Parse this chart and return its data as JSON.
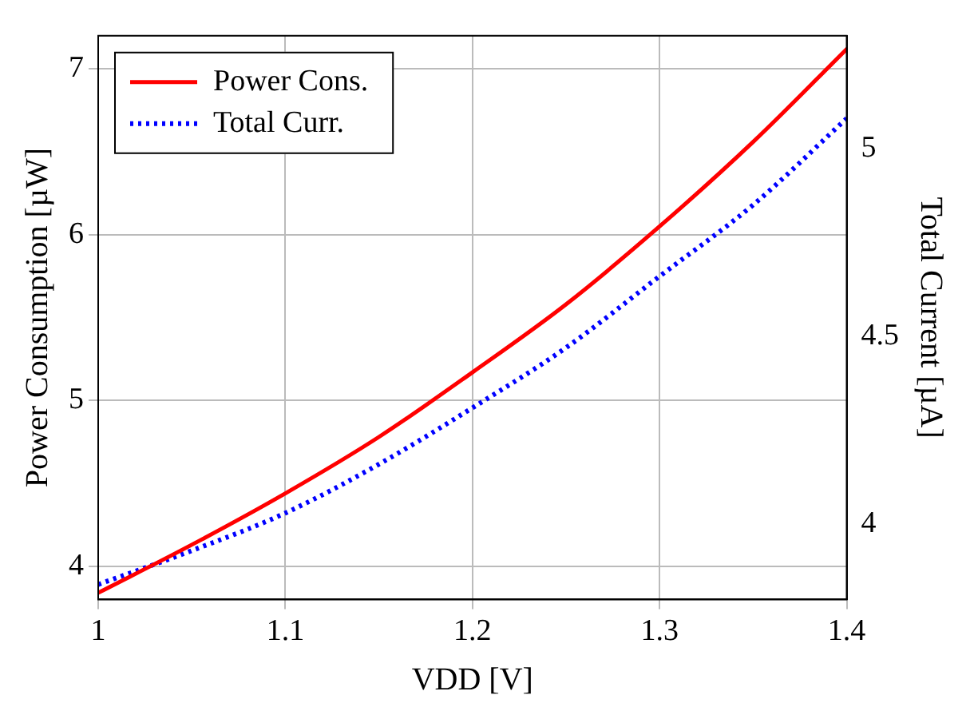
{
  "chart_data": {
    "type": "line",
    "xlabel": "VDD [V]",
    "ylabel": "Power Consumption [µW]",
    "y2label": "Total Current [µA]",
    "x": [
      1,
      1.05,
      1.1,
      1.15,
      1.2,
      1.25,
      1.3,
      1.35,
      1.4
    ],
    "xlim": [
      1,
      1.4
    ],
    "xticks": [
      1,
      1.1,
      1.2,
      1.3,
      1.4
    ],
    "ylim": [
      3.8,
      7.2
    ],
    "yticks": [
      4,
      5,
      6,
      7
    ],
    "y2lim": [
      3.8,
      5.3
    ],
    "y2ticks": [
      4,
      4.5,
      5
    ],
    "grid": true,
    "legend": "top left",
    "marker": "none",
    "series": [
      {
        "name": "Power Cons.",
        "color": "#ff0000",
        "line_style": "solid",
        "values": [
          3.84,
          4.13,
          4.44,
          4.78,
          5.17,
          5.58,
          6.05,
          6.56,
          7.12
        ]
      },
      {
        "name": "Total Curr.",
        "color": "#0000ff",
        "line_style": "dotted",
        "axis": "y2",
        "values": [
          3.84,
          3.93,
          4.03,
          4.16,
          4.31,
          4.47,
          4.66,
          4.85,
          5.08
        ]
      }
    ]
  }
}
